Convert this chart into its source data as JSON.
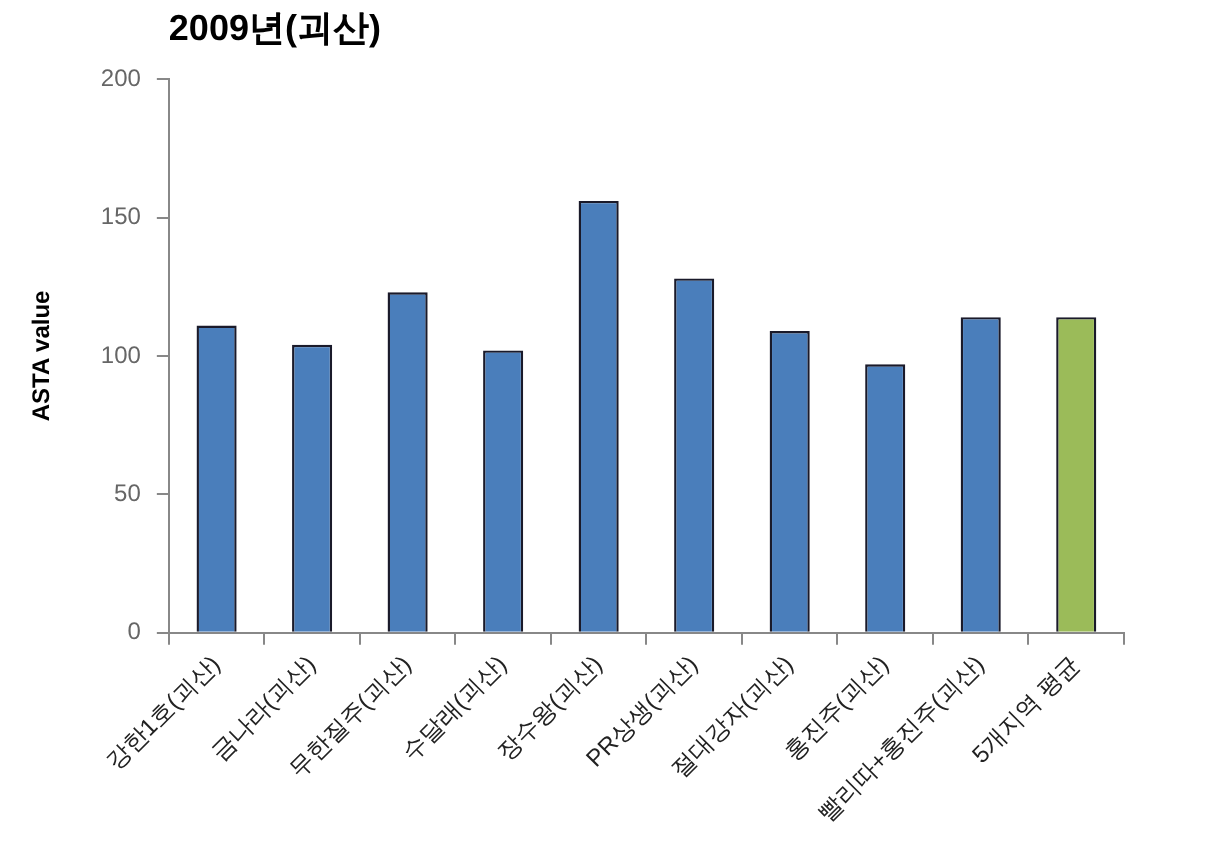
{
  "chart_data": {
    "type": "bar",
    "title": "2009년(괴산)",
    "ylabel": "ASTA value",
    "categories": [
      "강한1호(괴산)",
      "금나라(괴산)",
      "무한질주(괴산)",
      "수달래(괴산)",
      "장수왕(괴산)",
      "PR상생(괴산)",
      "절대강자(괴산)",
      "홍진주(괴산)",
      "빨리따+홍진주(괴산)",
      "5개지역 평균"
    ],
    "values": [
      111,
      104,
      123,
      102,
      156,
      128,
      109,
      97,
      114,
      114
    ],
    "colors": [
      "#4a7ebb",
      "#4a7ebb",
      "#4a7ebb",
      "#4a7ebb",
      "#4a7ebb",
      "#4a7ebb",
      "#4a7ebb",
      "#4a7ebb",
      "#4a7ebb",
      "#9bbb59"
    ],
    "ylim": [
      0,
      200
    ],
    "yticks": [
      0,
      50,
      100,
      150,
      200
    ],
    "grid": false,
    "legend": false
  }
}
